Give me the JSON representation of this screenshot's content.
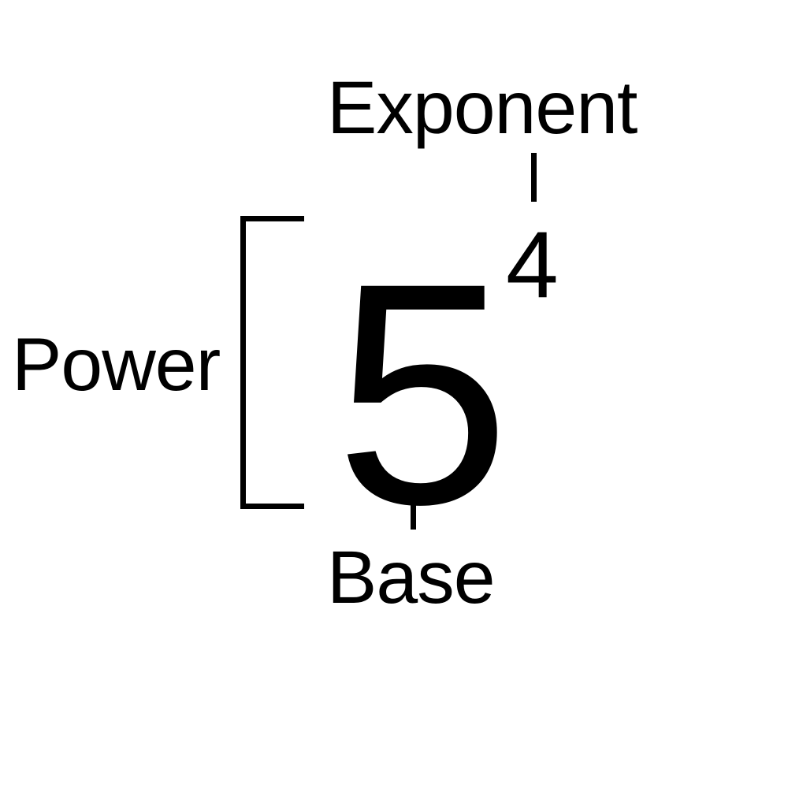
{
  "labels": {
    "exponent": "Exponent",
    "power": "Power",
    "base": "Base"
  },
  "expression": {
    "base": "5",
    "exponent": "4"
  },
  "colors": {
    "background": "#ffffff",
    "ink": "#000000"
  }
}
